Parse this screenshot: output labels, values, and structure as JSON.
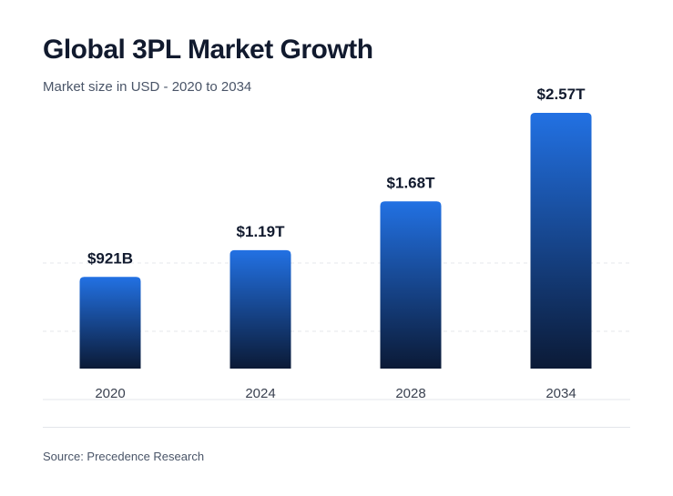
{
  "header": {
    "title": "Global 3PL Market Growth",
    "subtitle": "Market size in USD - 2020 to 2034"
  },
  "footer": {
    "source": "Source: Precedence Research"
  },
  "colors": {
    "bar_top": "#2271e3",
    "bar_bottom": "#0b1a36",
    "label": "#111a2e",
    "tick": "#3a4150"
  },
  "chart_data": {
    "type": "bar",
    "title": "Global 3PL Market Growth",
    "subtitle": "Market size in USD - 2020 to 2034",
    "categories": [
      "2020",
      "2024",
      "2028",
      "2034"
    ],
    "values": [
      0.921,
      1.19,
      1.68,
      2.57
    ],
    "value_unit": "USD trillion",
    "data_labels": [
      "$921B",
      "$1.19T",
      "$1.68T",
      "$2.57T"
    ],
    "xlabel": "",
    "ylabel": "",
    "ylim": [
      0,
      2.57
    ],
    "grid": true,
    "legend": "none"
  }
}
